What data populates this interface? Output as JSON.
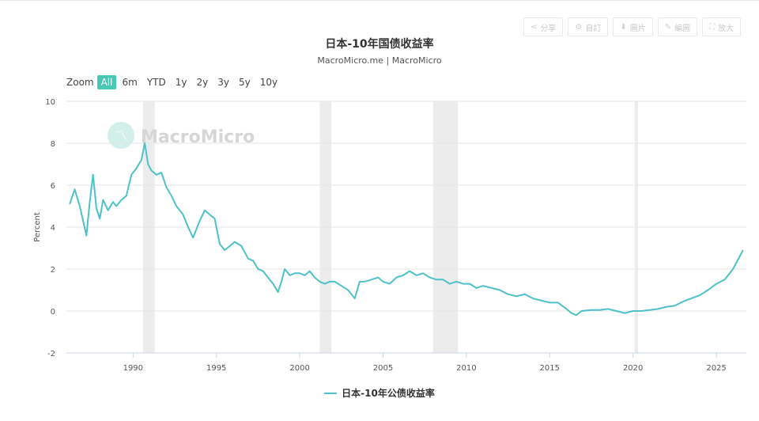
{
  "toolbar": [
    {
      "icon": "share-icon",
      "glyph": "⋖",
      "label": "分享"
    },
    {
      "icon": "gear-icon",
      "glyph": "⚙",
      "label": "自訂"
    },
    {
      "icon": "download-icon",
      "glyph": "⬇",
      "label": "圖片"
    },
    {
      "icon": "pencil-icon",
      "glyph": "✎",
      "label": "編圖"
    },
    {
      "icon": "expand-icon",
      "glyph": "⛶",
      "label": "放大"
    }
  ],
  "zoom": {
    "label": "Zoom",
    "options": [
      "All",
      "6m",
      "YTD",
      "1y",
      "2y",
      "3y",
      "5y",
      "10y"
    ],
    "selected": "All"
  },
  "watermark": "MacroMicro",
  "colors": {
    "series": "#4ec1c9",
    "recession": "#ececec",
    "accent": "#48c8b4"
  },
  "chart_data": {
    "type": "line",
    "title": "日本-10年国债收益率",
    "subtitle": "MacroMicro.me | MacroMicro",
    "ylabel": "Percent",
    "xlim": [
      1986.0,
      2026.8
    ],
    "ylim": [
      -2,
      10
    ],
    "yticks": [
      -2,
      0,
      2,
      4,
      6,
      8,
      10
    ],
    "xticks": [
      1990,
      1995,
      2000,
      2005,
      2010,
      2015,
      2020,
      2025
    ],
    "recessions": [
      [
        1990.6,
        1991.3
      ],
      [
        2001.2,
        2001.9
      ],
      [
        2008.0,
        2009.5
      ],
      [
        2020.1,
        2020.3
      ]
    ],
    "series": [
      {
        "name": "日本-10年公债收益率",
        "x": [
          1986.2,
          1986.5,
          1986.8,
          1987.0,
          1987.2,
          1987.4,
          1987.6,
          1987.8,
          1988.0,
          1988.2,
          1988.5,
          1988.8,
          1989.0,
          1989.3,
          1989.6,
          1989.9,
          1990.2,
          1990.5,
          1990.7,
          1990.9,
          1991.1,
          1991.4,
          1991.7,
          1992.0,
          1992.3,
          1992.6,
          1993.0,
          1993.3,
          1993.6,
          1994.0,
          1994.3,
          1994.6,
          1994.9,
          1995.2,
          1995.5,
          1995.8,
          1996.1,
          1996.5,
          1996.9,
          1997.2,
          1997.5,
          1997.8,
          1998.1,
          1998.4,
          1998.7,
          1998.9,
          1999.1,
          1999.4,
          1999.7,
          2000.0,
          2000.3,
          2000.6,
          2000.9,
          2001.2,
          2001.5,
          2001.8,
          2002.1,
          2002.5,
          2002.9,
          2003.3,
          2003.6,
          2003.9,
          2004.3,
          2004.7,
          2005.0,
          2005.4,
          2005.8,
          2006.2,
          2006.6,
          2007.0,
          2007.4,
          2007.8,
          2008.2,
          2008.6,
          2009.0,
          2009.4,
          2009.8,
          2010.2,
          2010.6,
          2011.0,
          2011.5,
          2012.0,
          2012.5,
          2013.0,
          2013.5,
          2014.0,
          2014.5,
          2015.0,
          2015.5,
          2016.0,
          2016.3,
          2016.6,
          2016.9,
          2017.5,
          2018.0,
          2018.5,
          2019.0,
          2019.5,
          2020.0,
          2020.5,
          2021.0,
          2021.5,
          2022.0,
          2022.5,
          2023.0,
          2023.5,
          2024.0,
          2024.5,
          2025.0,
          2025.5,
          2026.0,
          2026.6
        ],
        "y": [
          5.1,
          5.8,
          5.0,
          4.3,
          3.6,
          5.2,
          6.5,
          4.9,
          4.4,
          5.3,
          4.8,
          5.2,
          5.0,
          5.3,
          5.5,
          6.5,
          6.8,
          7.2,
          8.0,
          7.0,
          6.7,
          6.5,
          6.6,
          5.9,
          5.5,
          5.0,
          4.6,
          4.0,
          3.5,
          4.3,
          4.8,
          4.6,
          4.4,
          3.2,
          2.9,
          3.1,
          3.3,
          3.1,
          2.5,
          2.4,
          2.0,
          1.9,
          1.6,
          1.3,
          0.9,
          1.4,
          2.0,
          1.7,
          1.8,
          1.8,
          1.7,
          1.9,
          1.6,
          1.4,
          1.3,
          1.4,
          1.4,
          1.2,
          1.0,
          0.6,
          1.4,
          1.4,
          1.5,
          1.6,
          1.4,
          1.3,
          1.6,
          1.7,
          1.9,
          1.7,
          1.8,
          1.6,
          1.5,
          1.5,
          1.3,
          1.4,
          1.3,
          1.3,
          1.1,
          1.2,
          1.1,
          1.0,
          0.8,
          0.7,
          0.8,
          0.6,
          0.5,
          0.4,
          0.4,
          0.1,
          -0.1,
          -0.2,
          0.0,
          0.05,
          0.05,
          0.1,
          0.0,
          -0.1,
          0.0,
          0.0,
          0.05,
          0.1,
          0.2,
          0.25,
          0.45,
          0.6,
          0.75,
          1.0,
          1.3,
          1.5,
          2.0,
          2.9
        ]
      }
    ]
  }
}
